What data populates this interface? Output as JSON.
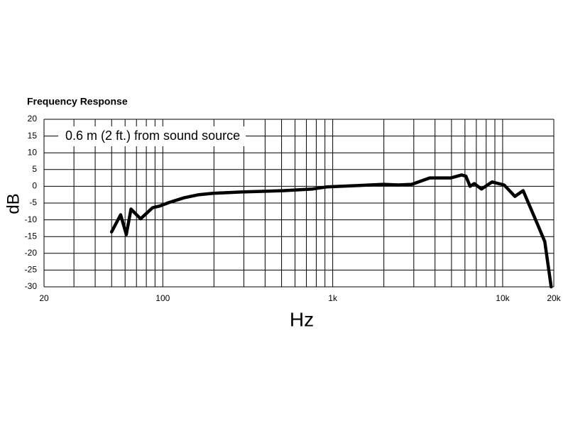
{
  "chart_data": {
    "type": "line",
    "title": "Frequency Response",
    "annotation": "0.6 m (2 ft.) from sound source",
    "x_label": "Hz",
    "y_label": "dB",
    "x": [
      50,
      56.5,
      61,
      65,
      74,
      87,
      96,
      108,
      134,
      163,
      198,
      290,
      517,
      760,
      920,
      1350,
      1990,
      2430,
      2920,
      3720,
      4960,
      5730,
      6080,
      6430,
      6800,
      7500,
      8670,
      10200,
      11800,
      13200,
      16000,
      17700,
      19300
    ],
    "values": [
      -13.6,
      -8.5,
      -14.4,
      -6.8,
      -9.7,
      -6.4,
      -5.9,
      -4.9,
      -3.4,
      -2.5,
      -2.1,
      -1.7,
      -1.3,
      -0.8,
      -0.2,
      0.2,
      0.6,
      0.4,
      0.6,
      2.5,
      2.5,
      3.4,
      3,
      0,
      0.8,
      -0.8,
      1.3,
      0.4,
      -3,
      -1.3,
      -11.2,
      -16.5,
      -30
    ],
    "color": "#000000",
    "xscale": "log",
    "xlim": [
      20,
      20000
    ],
    "xticks": [
      20,
      100,
      {
        "value": 1000,
        "label": "1k"
      },
      {
        "value": 10000,
        "label": "10k"
      },
      {
        "value": 20000,
        "label": "20k"
      }
    ],
    "xgrid": [
      20,
      30,
      40,
      50,
      60,
      70,
      80,
      90,
      100,
      200,
      300,
      400,
      500,
      600,
      700,
      800,
      900,
      1000,
      2000,
      3000,
      4000,
      5000,
      6000,
      7000,
      8000,
      9000,
      10000,
      20000
    ],
    "ylim": [
      -30,
      20
    ],
    "yticks": [
      20,
      15,
      10,
      5,
      0,
      -5,
      -10,
      -15,
      -20,
      -25,
      -30
    ],
    "grid": true
  }
}
